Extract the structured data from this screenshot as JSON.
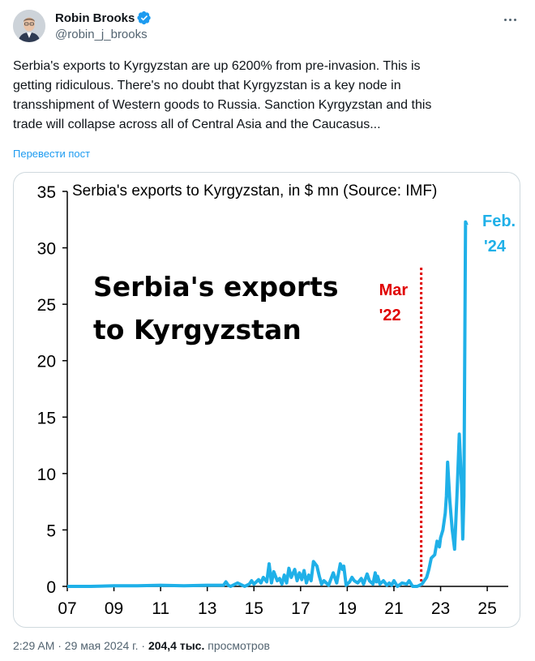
{
  "author": {
    "display_name": "Robin Brooks",
    "handle": "@robin_j_brooks"
  },
  "tweet": {
    "text_lines": [
      "Serbia's exports to Kyrgyzstan are up 6200% from pre-invasion. This is",
      "getting ridiculous. There's no doubt that Kyrgyzstan is a key node in",
      "transshipment of Western goods to Russia. Sanction Kyrgyzstan and this",
      "trade will collapse across all of Central Asia and the Caucasus..."
    ],
    "translate_label": "Перевести пост"
  },
  "meta": {
    "timestamp": "2:29 AM · 29 мая 2024 г.",
    "separator": "·",
    "views_count": "204,4 тыс.",
    "views_label": "просмотров"
  },
  "colors": {
    "line": "#1fb0e8",
    "marker": "#e00000",
    "accent": "#1d9bf0"
  },
  "chart_data": {
    "type": "line",
    "title": "Serbia's exports to Kyrgyzstan, in $ mn (Source: IMF)",
    "overlay_title_lines": [
      "Serbia's exports",
      "to Kyrgyzstan"
    ],
    "xlim": [
      2007,
      2025.9
    ],
    "ylim": [
      0,
      35
    ],
    "yticks": [
      0,
      5,
      10,
      15,
      20,
      25,
      30,
      35
    ],
    "xticks": [
      {
        "value": 2007,
        "label": "07"
      },
      {
        "value": 2009,
        "label": "09"
      },
      {
        "value": 2011,
        "label": "11"
      },
      {
        "value": 2013,
        "label": "13"
      },
      {
        "value": 2015,
        "label": "15"
      },
      {
        "value": 2017,
        "label": "17"
      },
      {
        "value": 2019,
        "label": "19"
      },
      {
        "value": 2021,
        "label": "21"
      },
      {
        "value": 2023,
        "label": "23"
      },
      {
        "value": 2025,
        "label": "25"
      }
    ],
    "marker": {
      "x": 2022.17,
      "label_lines": [
        "Mar",
        "'22"
      ]
    },
    "end_label_lines": [
      "Feb.",
      "'24"
    ],
    "series": [
      {
        "name": "Serbia's exports to Kyrgyzstan",
        "x": [
          2007.0,
          2008.0,
          2009.0,
          2010.0,
          2011.0,
          2012.0,
          2013.0,
          2013.7,
          2013.8,
          2013.9,
          2014.0,
          2014.3,
          2014.6,
          2014.8,
          2014.9,
          2015.0,
          2015.2,
          2015.3,
          2015.4,
          2015.55,
          2015.65,
          2015.75,
          2015.85,
          2016.0,
          2016.1,
          2016.2,
          2016.3,
          2016.4,
          2016.5,
          2016.6,
          2016.75,
          2016.85,
          2016.95,
          2017.05,
          2017.15,
          2017.25,
          2017.35,
          2017.45,
          2017.55,
          2017.7,
          2017.8,
          2017.9,
          2018.0,
          2018.2,
          2018.4,
          2018.55,
          2018.7,
          2018.8,
          2018.85,
          2018.95,
          2019.1,
          2019.2,
          2019.3,
          2019.45,
          2019.6,
          2019.7,
          2019.85,
          2019.95,
          2020.0,
          2020.1,
          2020.2,
          2020.25,
          2020.3,
          2020.4,
          2020.55,
          2020.7,
          2020.8,
          2020.9,
          2021.0,
          2021.15,
          2021.35,
          2021.55,
          2021.65,
          2021.8,
          2022.0,
          2022.2,
          2022.4,
          2022.5,
          2022.6,
          2022.75,
          2022.85,
          2022.95,
          2023.0,
          2023.1,
          2023.2,
          2023.25,
          2023.3,
          2023.4,
          2023.5,
          2023.6,
          2023.7,
          2023.8,
          2023.9,
          2023.95,
          2024.0,
          2024.07,
          2024.12
        ],
        "values": [
          0.0,
          0.0,
          0.05,
          0.05,
          0.1,
          0.05,
          0.1,
          0.1,
          0.4,
          0.1,
          0.0,
          0.3,
          0.0,
          0.2,
          0.5,
          0.2,
          0.6,
          0.3,
          0.8,
          0.4,
          2.0,
          0.3,
          1.3,
          0.5,
          0.7,
          0.2,
          1.0,
          0.3,
          1.6,
          0.8,
          1.5,
          0.5,
          1.2,
          0.6,
          1.4,
          0.3,
          1.0,
          0.5,
          2.2,
          1.8,
          0.9,
          0.2,
          0.5,
          0.1,
          1.2,
          0.3,
          2.0,
          1.5,
          1.8,
          0.1,
          0.4,
          0.8,
          0.5,
          0.3,
          0.7,
          0.2,
          1.1,
          0.5,
          0.4,
          0.2,
          1.2,
          0.4,
          0.9,
          0.2,
          0.5,
          0.1,
          0.3,
          0.1,
          0.5,
          0.0,
          0.3,
          0.2,
          0.5,
          0.0,
          0.0,
          0.2,
          0.8,
          1.5,
          2.5,
          2.8,
          4.0,
          3.5,
          4.3,
          5.0,
          6.5,
          8.0,
          11.0,
          7.5,
          5.0,
          3.3,
          8.0,
          13.5,
          9.0,
          4.2,
          8.0,
          32.3,
          32.0
        ]
      }
    ]
  }
}
